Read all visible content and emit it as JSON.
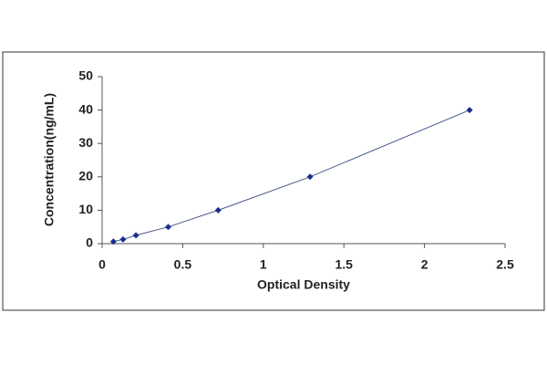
{
  "chart_data": {
    "type": "scatter",
    "x_label": "Optical Density",
    "y_label": "Concentration(ng/mL)",
    "x": [
      0.07,
      0.13,
      0.21,
      0.41,
      0.72,
      1.29,
      2.28
    ],
    "values": [
      0.625,
      1.25,
      2.5,
      5,
      10,
      20,
      40
    ],
    "color": "#1a2f8a",
    "line_color": "#4a5a8a",
    "line": true,
    "xlim": [
      0,
      2.5
    ],
    "xticks": [
      0,
      0.5,
      1,
      1.5,
      2,
      2.5
    ],
    "ylim": [
      0,
      50
    ],
    "yticks": [
      0,
      10,
      20,
      30,
      40,
      50
    ],
    "grid": false
  }
}
